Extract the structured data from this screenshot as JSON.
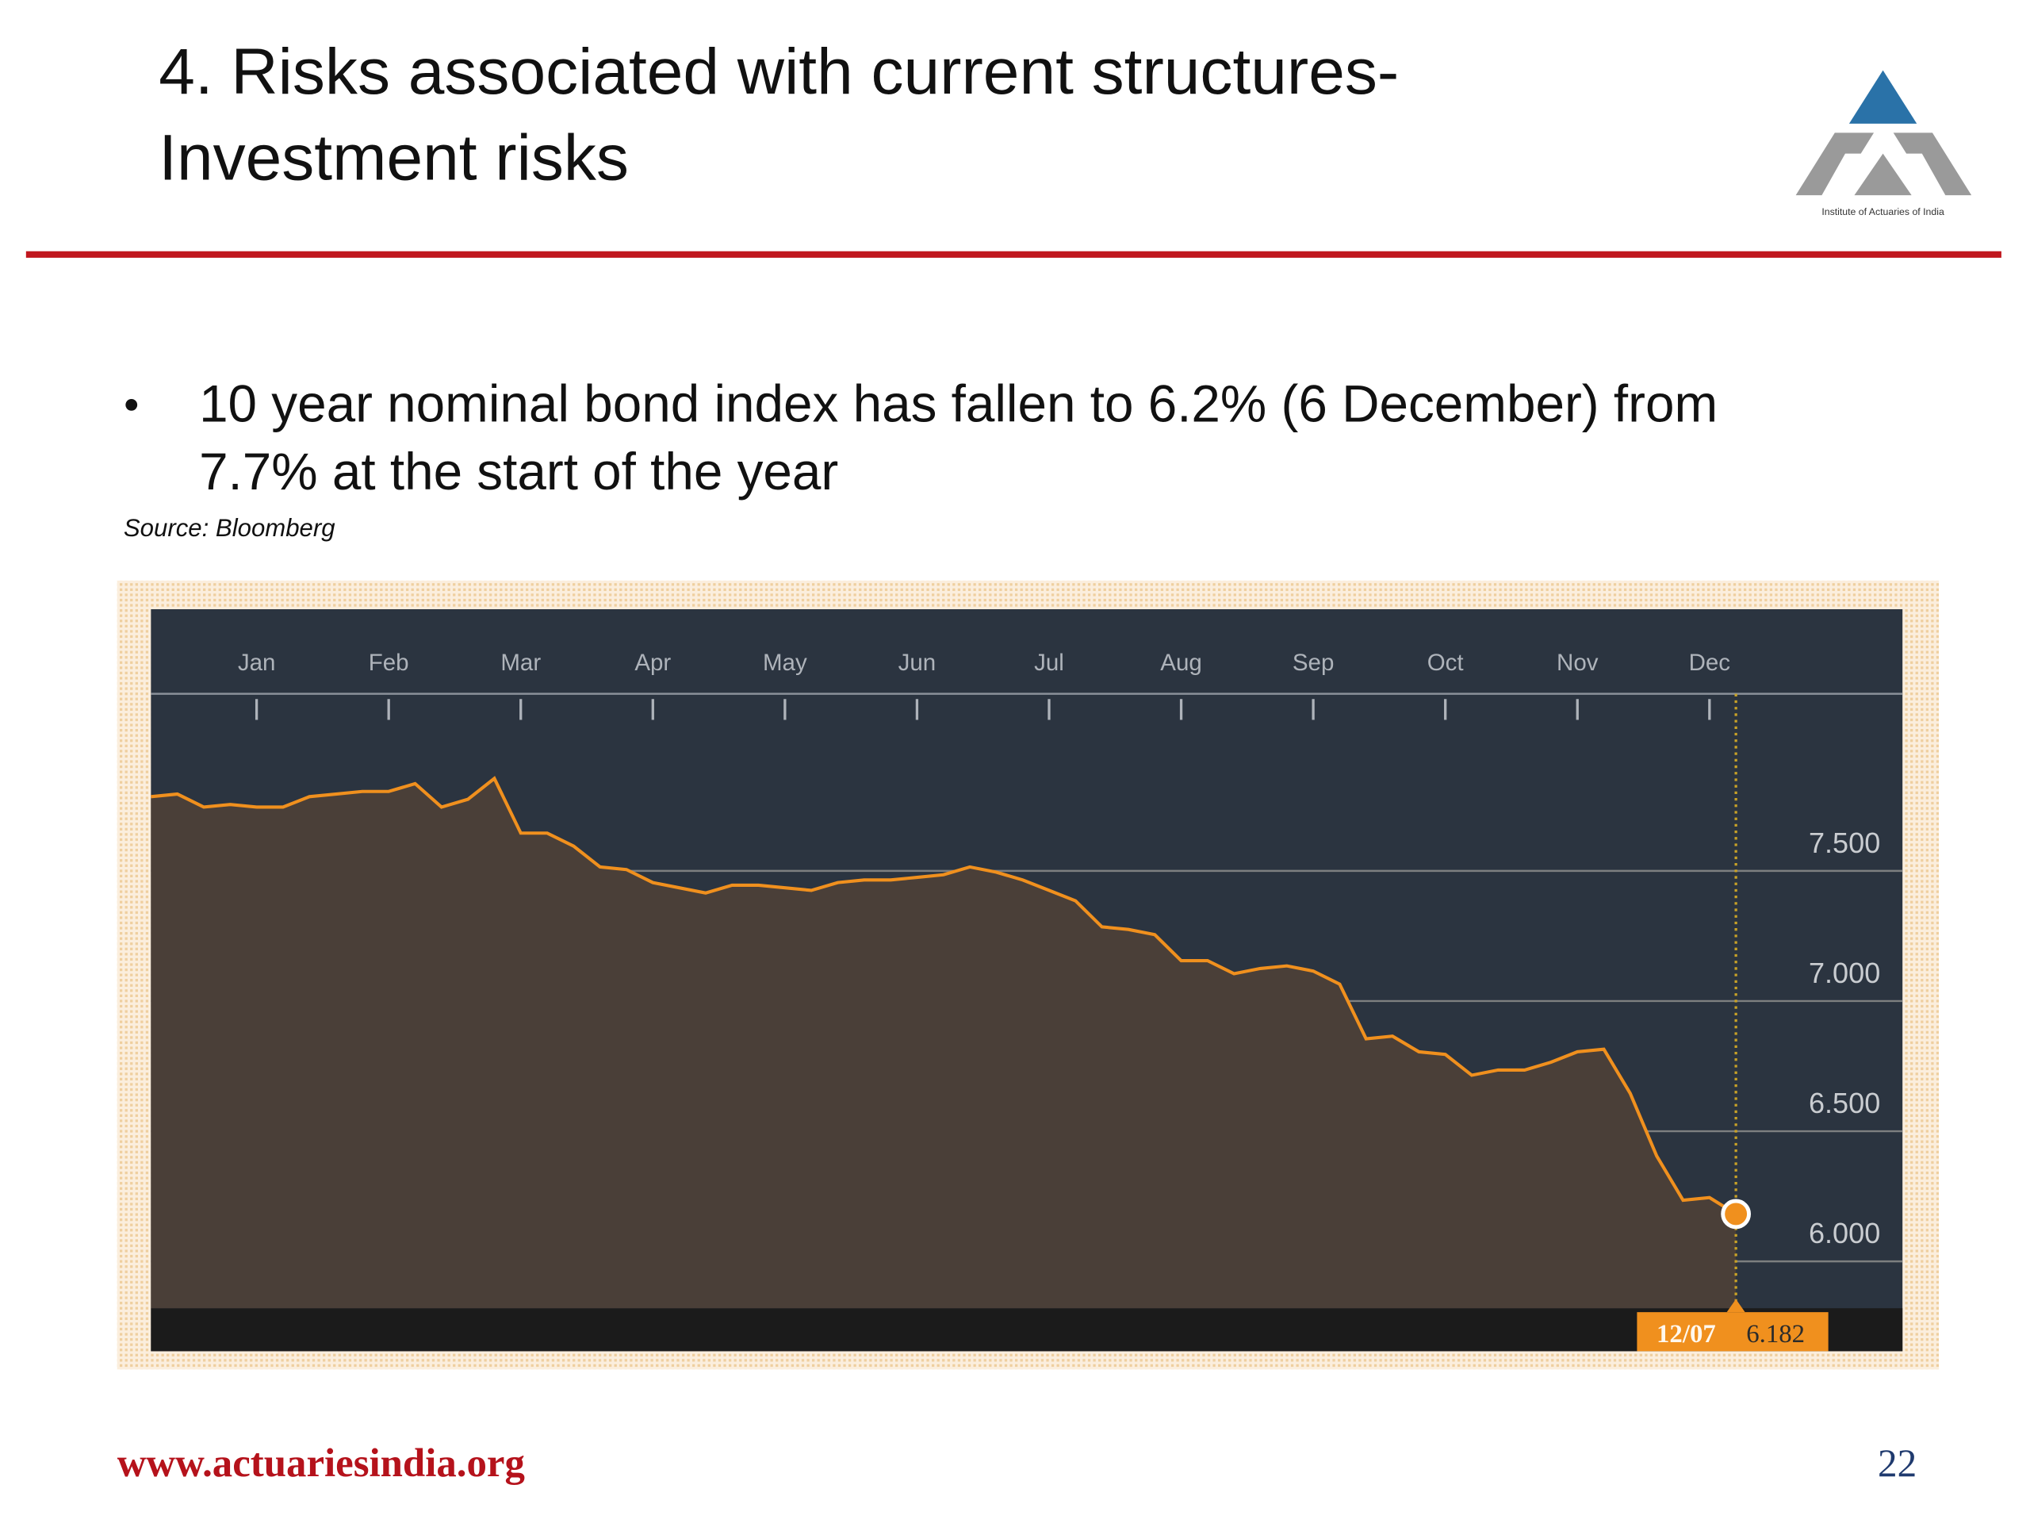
{
  "header": {
    "title_lines": [
      "4. Risks associated with current structures-",
      "Investment risks"
    ],
    "logo_text": "Institute of Actuaries of India"
  },
  "bullet": {
    "lines": [
      "10 year nominal bond index has fallen to 6.2% (6 December) from",
      "7.7% at the start of the year"
    ]
  },
  "source": "Source: Bloomberg",
  "chart_data": {
    "type": "area",
    "categories": [
      null,
      null,
      null,
      null,
      "Jan",
      null,
      null,
      null,
      null,
      "Feb",
      null,
      null,
      null,
      null,
      "Mar",
      null,
      null,
      null,
      null,
      "Apr",
      null,
      null,
      null,
      null,
      "May",
      null,
      null,
      null,
      null,
      "Jun",
      null,
      null,
      null,
      null,
      "Jul",
      null,
      null,
      null,
      null,
      "Aug",
      null,
      null,
      null,
      null,
      "Sep",
      null,
      null,
      null,
      null,
      "Oct",
      null,
      null,
      null,
      null,
      "Nov",
      null,
      null,
      null,
      null,
      "Dec",
      "12/07"
    ],
    "series": [
      {
        "color": "#f0901e",
        "values": [
          7.785,
          7.795,
          7.745,
          7.755,
          7.745,
          7.745,
          7.785,
          7.795,
          7.805,
          7.805,
          7.835,
          7.745,
          7.775,
          7.855,
          7.645,
          7.645,
          7.595,
          7.515,
          7.505,
          7.455,
          7.435,
          7.415,
          7.445,
          7.445,
          7.435,
          7.425,
          7.455,
          7.465,
          7.465,
          7.475,
          7.485,
          7.515,
          7.495,
          7.465,
          7.425,
          7.385,
          7.285,
          7.275,
          7.255,
          7.155,
          7.155,
          7.105,
          7.125,
          7.135,
          7.115,
          7.065,
          6.855,
          6.865,
          6.805,
          6.795,
          6.715,
          6.735,
          6.735,
          6.765,
          6.805,
          6.815,
          6.645,
          6.405,
          6.235,
          6.245,
          6.182
        ]
      }
    ],
    "ylim": [
      5.82,
      8.18
    ],
    "yticks": [
      {
        "value": 6.0,
        "label": "6.000"
      },
      {
        "value": 6.5,
        "label": "6.500"
      },
      {
        "value": 7.0,
        "label": "7.000"
      },
      {
        "value": 7.5,
        "label": "7.500"
      }
    ],
    "grid": true
  },
  "footer": {
    "url": "www.actuariesindia.org",
    "page": "22"
  }
}
